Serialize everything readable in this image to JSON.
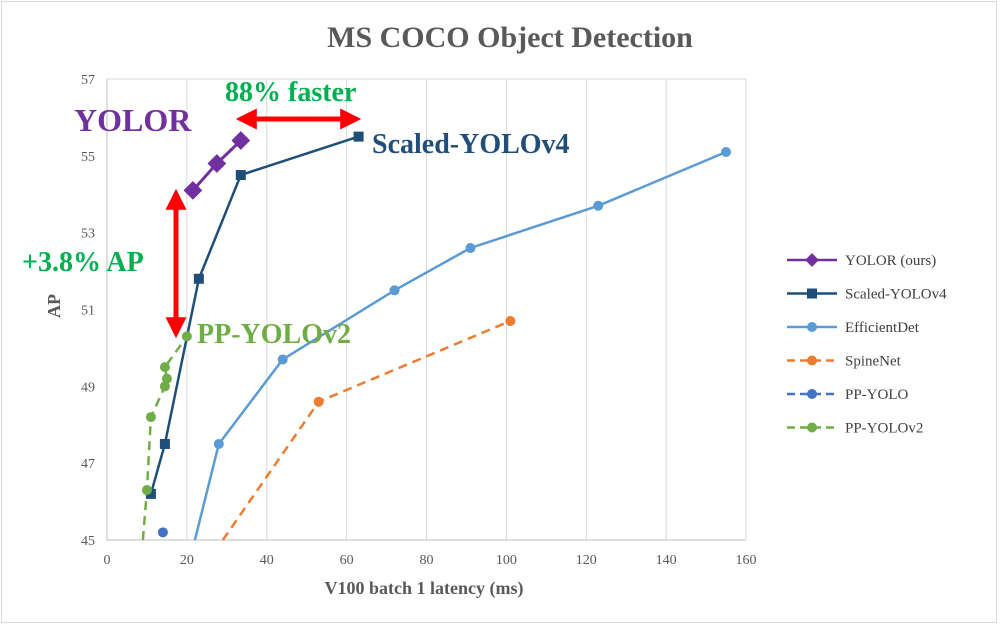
{
  "chart_data": {
    "type": "line",
    "title": "MS COCO Object Detection",
    "xlabel": "V100 batch 1 latency (ms)",
    "ylabel": "AP",
    "xlim": [
      0,
      160
    ],
    "ylim": [
      45,
      57
    ],
    "xticks": [
      0,
      20,
      40,
      60,
      80,
      100,
      120,
      140,
      160
    ],
    "yticks": [
      45,
      47,
      49,
      51,
      53,
      55,
      57
    ],
    "grid": "vertical",
    "legend_position": "right",
    "series": [
      {
        "name": "YOLOR (ours)",
        "color": "#7030a0",
        "marker": "diamond",
        "dash": false,
        "points": [
          [
            21.5,
            54.1
          ],
          [
            27.5,
            54.8
          ],
          [
            33.5,
            55.4
          ]
        ]
      },
      {
        "name": "Scaled-YOLOv4",
        "color": "#1f4e79",
        "marker": "square",
        "dash": false,
        "points": [
          [
            11,
            46.2
          ],
          [
            14.5,
            47.5
          ],
          [
            23,
            51.8
          ],
          [
            33.5,
            54.5
          ],
          [
            63,
            55.5
          ]
        ]
      },
      {
        "name": "EfficientDet",
        "color": "#5b9bd5",
        "marker": "circle",
        "dash": false,
        "points": [
          [
            22,
            45.0
          ],
          [
            28,
            47.5
          ],
          [
            44,
            49.7
          ],
          [
            72,
            51.5
          ],
          [
            91,
            52.6
          ],
          [
            123,
            53.7
          ],
          [
            155,
            55.1
          ]
        ]
      },
      {
        "name": "SpineNet",
        "color": "#ed7d31",
        "marker": "circle",
        "dash": true,
        "points": [
          [
            29,
            45.0
          ],
          [
            53,
            48.6
          ],
          [
            101,
            50.7
          ]
        ]
      },
      {
        "name": "PP-YOLO",
        "color": "#4472c4",
        "marker": "circle",
        "dash": true,
        "points": [
          [
            14,
            45.2
          ]
        ]
      },
      {
        "name": "PP-YOLOv2",
        "color": "#70ad47",
        "marker": "circle",
        "dash": true,
        "points": [
          [
            9,
            45.0
          ],
          [
            10,
            46.3
          ],
          [
            11,
            48.2
          ],
          [
            14.5,
            49.0
          ],
          [
            15,
            49.2
          ],
          [
            14.5,
            49.5
          ],
          [
            20,
            50.3
          ]
        ]
      }
    ],
    "annotations": [
      {
        "text": "YOLOR",
        "color": "#7030a0"
      },
      {
        "text": "Scaled-YOLOv4",
        "color": "#1f4e79"
      },
      {
        "text": "PP-YOLOv2",
        "color": "#70ad47"
      },
      {
        "text": "88% faster",
        "color": "#00b050"
      },
      {
        "text": "+3.8% AP",
        "color": "#00b050"
      }
    ]
  }
}
